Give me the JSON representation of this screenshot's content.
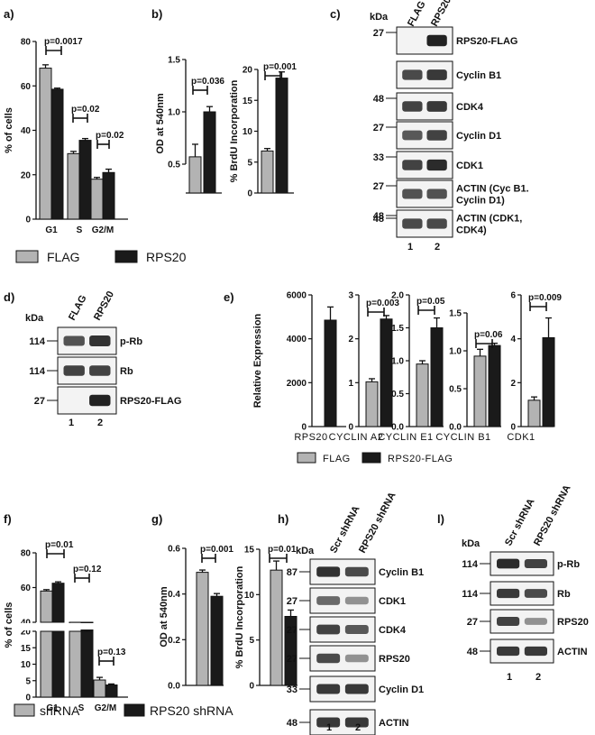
{
  "panels": {
    "a": "a)",
    "b": "b)",
    "c": "c)",
    "d": "d)",
    "e": "e)",
    "f": "f)",
    "g": "g)",
    "h": "h)",
    "i": "l)"
  },
  "colors": {
    "control": "#b3b3b3",
    "treated": "#1a1a1a",
    "band": "#222222"
  },
  "legend_ac": {
    "control": "FLAG",
    "treated": "RPS20"
  },
  "legend_e": {
    "control": "FLAG",
    "treated": "RPS20-FLAG"
  },
  "legend_f": {
    "control": "shRNA",
    "treated": "RPS20 shRNA"
  },
  "chart_data": [
    {
      "id": "a",
      "type": "bar",
      "ylabel": "% of cells",
      "ylim": [
        0,
        80
      ],
      "yticks": [
        "0",
        "20",
        "40",
        "60",
        "80"
      ],
      "categories": [
        "G1",
        "S",
        "G2/M"
      ],
      "series": [
        {
          "name": "FLAG",
          "values": [
            68,
            29.5,
            18
          ],
          "errors": [
            1.5,
            1,
            0.8
          ]
        },
        {
          "name": "RPS20",
          "values": [
            58.5,
            35.5,
            21
          ],
          "errors": [
            0.5,
            0.8,
            1.5
          ]
        }
      ],
      "pvalues": [
        "p=0.0017",
        "p=0.02",
        "p=0.02"
      ]
    },
    {
      "id": "b1",
      "type": "bar",
      "ylabel": "OD at 540nm",
      "ylim": [
        0,
        1.5
      ],
      "yticks": [
        "0.5",
        "1.0",
        "1.5"
      ],
      "series": [
        {
          "name": "FLAG",
          "values": [
            0.57
          ],
          "errors": [
            0.12
          ]
        },
        {
          "name": "RPS20",
          "values": [
            1.0
          ],
          "errors": [
            0.05
          ]
        }
      ],
      "pvalues": [
        "p=0.036"
      ]
    },
    {
      "id": "b2",
      "type": "bar",
      "ylabel": "% BrdU Incorporation",
      "ylim": [
        0,
        20
      ],
      "yticks": [
        "0",
        "5",
        "10",
        "15",
        "20"
      ],
      "series": [
        {
          "name": "FLAG",
          "values": [
            6.8
          ],
          "errors": [
            0.4
          ]
        },
        {
          "name": "RPS20",
          "values": [
            18.6
          ],
          "errors": [
            1.0
          ]
        }
      ],
      "pvalues": [
        "p=0.001"
      ]
    },
    {
      "id": "e1",
      "type": "bar",
      "ylabel": "Relative Expression",
      "ylim": [
        0,
        6000
      ],
      "yticks": [
        "0",
        "2000",
        "4000",
        "6000"
      ],
      "categories": [
        "RPS20"
      ],
      "series": [
        {
          "name": "RPS20-FLAG",
          "values": [
            4850
          ],
          "errors": [
            600
          ]
        }
      ]
    },
    {
      "id": "e2",
      "type": "bar",
      "ylim": [
        0,
        3
      ],
      "yticks": [
        "0",
        "1",
        "2",
        "3"
      ],
      "categories": [
        "CYCLIN A2"
      ],
      "series": [
        {
          "name": "FLAG",
          "values": [
            1.02
          ],
          "errors": [
            0.07
          ]
        },
        {
          "name": "RPS20-FLAG",
          "values": [
            2.45
          ],
          "errors": [
            0.08
          ]
        }
      ],
      "pvalues": [
        "p=0.003"
      ]
    },
    {
      "id": "e3",
      "type": "bar",
      "ylim": [
        0,
        2.0
      ],
      "yticks": [
        "0.0",
        "0.5",
        "1.0",
        "1.5",
        "2.0"
      ],
      "categories": [
        "CYCLIN E1"
      ],
      "series": [
        {
          "name": "FLAG",
          "values": [
            0.95
          ],
          "errors": [
            0.05
          ]
        },
        {
          "name": "RPS20-FLAG",
          "values": [
            1.5
          ],
          "errors": [
            0.15
          ]
        }
      ],
      "pvalues": [
        "p=0.05"
      ]
    },
    {
      "id": "e4",
      "type": "bar",
      "ylim": [
        0,
        1.5
      ],
      "yticks": [
        "0.0",
        "0.5",
        "1.0",
        "1.5"
      ],
      "categories": [
        "CYCLIN B1"
      ],
      "series": [
        {
          "name": "FLAG",
          "values": [
            0.93
          ],
          "errors": [
            0.09
          ]
        },
        {
          "name": "RPS20-FLAG",
          "values": [
            1.07
          ],
          "errors": [
            0.03
          ]
        }
      ],
      "pvalues": [
        "p=0.06"
      ]
    },
    {
      "id": "e5",
      "type": "bar",
      "ylim": [
        0,
        6
      ],
      "yticks": [
        "0",
        "2",
        "4",
        "6"
      ],
      "categories": [
        "CDK1"
      ],
      "series": [
        {
          "name": "FLAG",
          "values": [
            1.2
          ],
          "errors": [
            0.15
          ]
        },
        {
          "name": "RPS20-FLAG",
          "values": [
            4.05
          ],
          "errors": [
            0.9
          ]
        }
      ],
      "pvalues": [
        "p=0.009"
      ]
    },
    {
      "id": "f",
      "type": "bar",
      "ylabel": "% of cells",
      "yticks_upper": [
        "40",
        "60",
        "80"
      ],
      "yticks_lower": [
        "0",
        "5",
        "10",
        "15",
        "20"
      ],
      "categories": [
        "G1",
        "S",
        "G2/M"
      ],
      "series": [
        {
          "name": "shRNA",
          "values": [
            58,
            37,
            5.2
          ],
          "errors": [
            0.8,
            0.6,
            0.8
          ]
        },
        {
          "name": "RPS20 shRNA",
          "values": [
            62.5,
            34.5,
            3.7
          ],
          "errors": [
            0.8,
            0.4,
            0.3
          ]
        }
      ],
      "pvalues": [
        "p=0.01",
        "p=0.12",
        "p=0.13"
      ]
    },
    {
      "id": "g1",
      "type": "bar",
      "ylabel": "OD at 540nm",
      "ylim": [
        0,
        0.6
      ],
      "yticks": [
        "0.0",
        "0.2",
        "0.4",
        "0.6"
      ],
      "series": [
        {
          "name": "shRNA",
          "values": [
            0.495
          ],
          "errors": [
            0.01
          ]
        },
        {
          "name": "RPS20 shRNA",
          "values": [
            0.39
          ],
          "errors": [
            0.012
          ]
        }
      ],
      "pvalues": [
        "p=0.001"
      ]
    },
    {
      "id": "g2",
      "type": "bar",
      "ylabel": "% BrdU Incorporation",
      "ylim": [
        0,
        15
      ],
      "yticks": [
        "0",
        "5",
        "10",
        "15"
      ],
      "series": [
        {
          "name": "shRNA",
          "values": [
            12.7
          ],
          "errors": [
            1.0
          ]
        },
        {
          "name": "RPS20 shRNA",
          "values": [
            7.6
          ],
          "errors": [
            0.7
          ]
        }
      ],
      "pvalues": [
        "p=0.01"
      ]
    }
  ],
  "blots": [
    {
      "id": "c",
      "lanes": [
        "FLAG",
        "RPS20"
      ],
      "lane_numbers": [
        "1",
        "2"
      ],
      "kda_header": "kDa",
      "rows": [
        {
          "kda": "27",
          "label": [
            "RPS20-FLAG"
          ],
          "intensity": [
            0.0,
            1.0
          ]
        },
        {
          "kda": "",
          "label": [
            "Cyclin B1"
          ],
          "intensity": [
            0.75,
            0.85
          ]
        },
        {
          "kda": "48",
          "label": [
            "CDK4"
          ],
          "intensity": [
            0.8,
            0.85
          ]
        },
        {
          "kda": "27",
          "label": [
            "Cyclin D1"
          ],
          "intensity": [
            0.65,
            0.8
          ]
        },
        {
          "kda": "33",
          "label": [
            "CDK1"
          ],
          "intensity": [
            0.8,
            0.95
          ]
        },
        {
          "kda": "27",
          "label": [
            "ACTIN (Cyc B1.",
            "Cyclin D1)"
          ],
          "intensity": [
            0.7,
            0.7
          ]
        },
        {
          "kda": "48",
          "label": [
            "ACTIN (CDK1,",
            "CDK4)"
          ],
          "intensity": [
            0.75,
            0.75
          ]
        }
      ],
      "extra_kda": "48"
    },
    {
      "id": "d",
      "lanes": [
        "FLAG",
        "RPS20"
      ],
      "lane_numbers": [
        "1",
        "2"
      ],
      "kda_header": "kDa",
      "rows": [
        {
          "kda": "114",
          "label": [
            "p-Rb"
          ],
          "intensity": [
            0.7,
            0.9
          ]
        },
        {
          "kda": "114",
          "label": [
            "Rb"
          ],
          "intensity": [
            0.8,
            0.8
          ]
        },
        {
          "kda": "27",
          "label": [
            "RPS20-FLAG"
          ],
          "intensity": [
            0.0,
            1.0
          ]
        }
      ]
    },
    {
      "id": "h",
      "lanes": [
        "Scr shRNA",
        "RPS20 shRNA"
      ],
      "lane_numbers": [
        "1",
        "2"
      ],
      "kda_header": "kDa",
      "rows": [
        {
          "kda": "87",
          "label": [
            "Cyclin B1"
          ],
          "intensity": [
            0.9,
            0.75
          ]
        },
        {
          "kda": "27",
          "label": [
            "CDK1"
          ],
          "intensity": [
            0.55,
            0.3
          ]
        },
        {
          "kda": "27",
          "label": [
            "CDK4"
          ],
          "intensity": [
            0.8,
            0.65
          ]
        },
        {
          "kda": "27",
          "label": [
            "RPS20"
          ],
          "intensity": [
            0.75,
            0.3
          ]
        },
        {
          "kda": "33",
          "label": [
            "Cyclin D1"
          ],
          "intensity": [
            0.85,
            0.85
          ]
        },
        {
          "kda": "48",
          "label": [
            "ACTIN"
          ],
          "intensity": [
            0.85,
            0.85
          ]
        }
      ]
    },
    {
      "id": "i",
      "lanes": [
        "Scr shRNA",
        "RPS20 shRNA"
      ],
      "lane_numbers": [
        "1",
        "2"
      ],
      "kda_header": "kDa",
      "rows": [
        {
          "kda": "114",
          "label": [
            "p-Rb"
          ],
          "intensity": [
            0.95,
            0.8
          ]
        },
        {
          "kda": "114",
          "label": [
            "Rb"
          ],
          "intensity": [
            0.85,
            0.75
          ]
        },
        {
          "kda": "27",
          "label": [
            "RPS20"
          ],
          "intensity": [
            0.8,
            0.3
          ]
        },
        {
          "kda": "48",
          "label": [
            "ACTIN"
          ],
          "intensity": [
            0.85,
            0.85
          ]
        }
      ]
    }
  ]
}
